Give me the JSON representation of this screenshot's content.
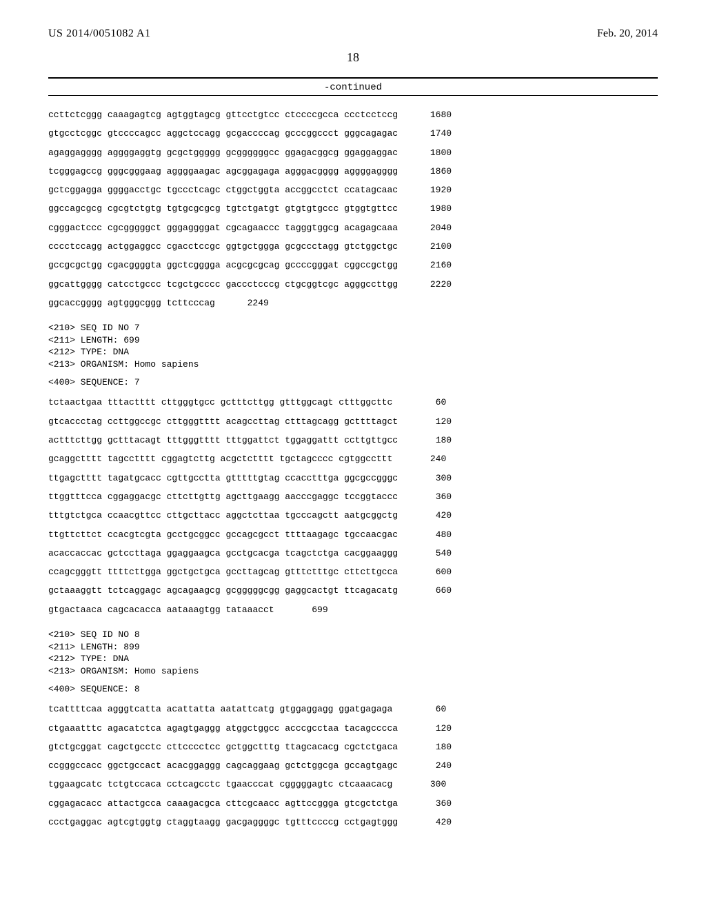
{
  "header": {
    "pub_number": "US 2014/0051082 A1",
    "pub_date": "Feb. 20, 2014"
  },
  "page_number": "18",
  "continued_label": "-continued",
  "sequence_blocks": [
    {
      "lines": [
        {
          "groups": "ccttctcggg caaagagtcg agtggtagcg gttcctgtcc ctccccgcca ccctcctccg",
          "num": "1680"
        },
        {
          "groups": "gtgcctcggc gtccccagcc aggctccagg gcgaccccag gcccggccct gggcagagac",
          "num": "1740"
        },
        {
          "groups": "agaggagggg aggggaggtg gcgctggggg gcggggggcc ggagacggcg ggaggaggac",
          "num": "1800"
        },
        {
          "groups": "tcgggagccg gggcgggaag aggggaagac agcggagaga agggacgggg aggggagggg",
          "num": "1860"
        },
        {
          "groups": "gctcggagga ggggacctgc tgccctcagc ctggctggta accggcctct ccatagcaac",
          "num": "1920"
        },
        {
          "groups": "ggccagcgcg cgcgtctgtg tgtgcgcgcg tgtctgatgt gtgtgtgccc gtggtgttcc",
          "num": "1980"
        },
        {
          "groups": "cgggactccc cgcgggggct gggaggggat cgcagaaccc tagggtggcg acagagcaaa",
          "num": "2040"
        },
        {
          "groups": "cccctccagg actggaggcc cgacctccgc ggtgctggga gcgccctagg gtctggctgc",
          "num": "2100"
        },
        {
          "groups": "gccgcgctgg cgacggggta ggctcgggga acgcgcgcag gccccgggat cggccgctgg",
          "num": "2160"
        },
        {
          "groups": "ggcattgggg catcctgccc tcgctgcccc gaccctcccg ctgcggtcgc agggccttgg",
          "num": "2220"
        },
        {
          "groups": "ggcaccgggg agtgggcggg tcttcccag",
          "num": "2249"
        }
      ]
    }
  ],
  "seq_meta_7": {
    "lines": [
      "<210> SEQ ID NO 7",
      "<211> LENGTH: 699",
      "<212> TYPE: DNA",
      "<213> ORGANISM: Homo sapiens"
    ],
    "header": "<400> SEQUENCE: 7"
  },
  "sequence_7": {
    "lines": [
      {
        "groups": "tctaactgaa tttactttt cttgggtgcc gctttcttgg gtttggcagt ctttggcttc",
        "num": "60"
      },
      {
        "groups": "gtcaccctag ccttggccgc cttgggtttt acagccttag ctttagcagg gcttttagct",
        "num": "120"
      },
      {
        "groups": "actttcttgg gctttacagt tttgggtttt tttggattct tggaggattt ccttgttgcc",
        "num": "180"
      },
      {
        "groups": "gcaggctttt tagcctttt cggagtcttg acgctctttt tgctagcccc cgtggccttt",
        "num": "240"
      },
      {
        "groups": "ttgagctttt tagatgcacc cgttgcctta gtttttgtag ccacctttga ggcgccgggc",
        "num": "300"
      },
      {
        "groups": "ttggtttcca cggaggacgc cttcttgttg agcttgaagg aacccgaggc tccggtaccc",
        "num": "360"
      },
      {
        "groups": "tttgtctgca ccaacgttcc cttgcttacc aggctcttaa tgcccagctt aatgcggctg",
        "num": "420"
      },
      {
        "groups": "ttgttcttct ccacgtcgta gcctgcggcc gccagcgcct ttttaagagc tgccaacgac",
        "num": "480"
      },
      {
        "groups": "acaccaccac gctccttaga ggaggaagca gcctgcacga tcagctctga cacggaaggg",
        "num": "540"
      },
      {
        "groups": "ccagcgggtt ttttcttgga ggctgctgca gccttagcag gtttctttgc cttcttgcca",
        "num": "600"
      },
      {
        "groups": "gctaaaggtt tctcaggagc agcagaagcg gcgggggcgg gaggcactgt ttcagacatg",
        "num": "660"
      },
      {
        "groups": "gtgactaaca cagcacacca aataaagtgg tataaacct",
        "num": "699"
      }
    ]
  },
  "seq_meta_8": {
    "lines": [
      "<210> SEQ ID NO 8",
      "<211> LENGTH: 899",
      "<212> TYPE: DNA",
      "<213> ORGANISM: Homo sapiens"
    ],
    "header": "<400> SEQUENCE: 8"
  },
  "sequence_8": {
    "lines": [
      {
        "groups": "tcattttcaa agggtcatta acattatta aatattcatg gtggaggagg ggatgagaga",
        "num": "60"
      },
      {
        "groups": "ctgaaatttc agacatctca agagtgaggg atggctggcc acccgcctaa tacagcccca",
        "num": "120"
      },
      {
        "groups": "gtctgcggat cagctgcctc cttcccctcc gctggctttg ttagcacacg cgctctgaca",
        "num": "180"
      },
      {
        "groups": "ccgggccacc ggctgccact acacggaggg cagcaggaag gctctggcga gccagtgagc",
        "num": "240"
      },
      {
        "groups": "tggaagcatc tctgtccaca cctcagcctc tgaacccat cgggggagtc ctcaaacacg",
        "num": "300"
      },
      {
        "groups": "cggagacacc attactgcca caaagacgca cttcgcaacc agttccggga gtcgctctga",
        "num": "360"
      },
      {
        "groups": "ccctgaggac agtcgtggtg ctaggtaagg gacgaggggc tgtttccccg cctgagtggg",
        "num": "420"
      }
    ]
  }
}
